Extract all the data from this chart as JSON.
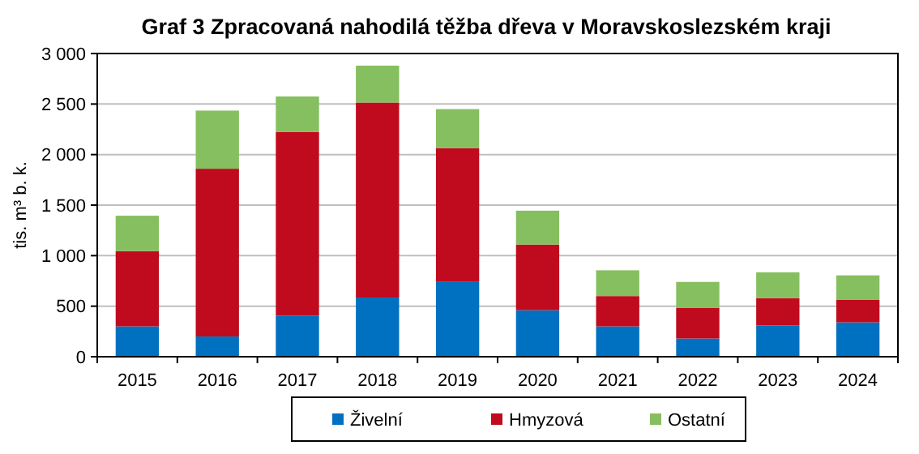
{
  "chart_data": {
    "type": "bar",
    "title": "Graf 3 Zpracovaná  nahodilá těžba dřeva v Moravskoslezském  kraji",
    "ylabel": "tis. m³ b. k.",
    "categories": [
      "2015",
      "2016",
      "2017",
      "2018",
      "2019",
      "2020",
      "2021",
      "2022",
      "2023",
      "2024"
    ],
    "stacked": true,
    "series": [
      {
        "name": "Živelní",
        "color": "#0070c0",
        "values": [
          300,
          200,
          405,
          585,
          745,
          460,
          300,
          180,
          310,
          340
        ]
      },
      {
        "name": "Hmyzová",
        "color": "#c00a1e",
        "values": [
          745,
          1660,
          1820,
          1930,
          1320,
          650,
          300,
          305,
          270,
          225
        ]
      },
      {
        "name": "Ostatní",
        "color": "#86bf5f",
        "values": [
          350,
          575,
          350,
          365,
          385,
          335,
          255,
          255,
          255,
          240
        ]
      }
    ],
    "ylim": [
      0,
      3000
    ],
    "yticks": [
      {
        "value": 0,
        "label": "0"
      },
      {
        "value": 500,
        "label": "500"
      },
      {
        "value": 1000,
        "label": "1 000"
      },
      {
        "value": 1500,
        "label": "1 500"
      },
      {
        "value": 2000,
        "label": "2 000"
      },
      {
        "value": 2500,
        "label": "2 500"
      },
      {
        "value": 3000,
        "label": "3 000"
      }
    ],
    "grid": "y",
    "legend": "bottom"
  }
}
